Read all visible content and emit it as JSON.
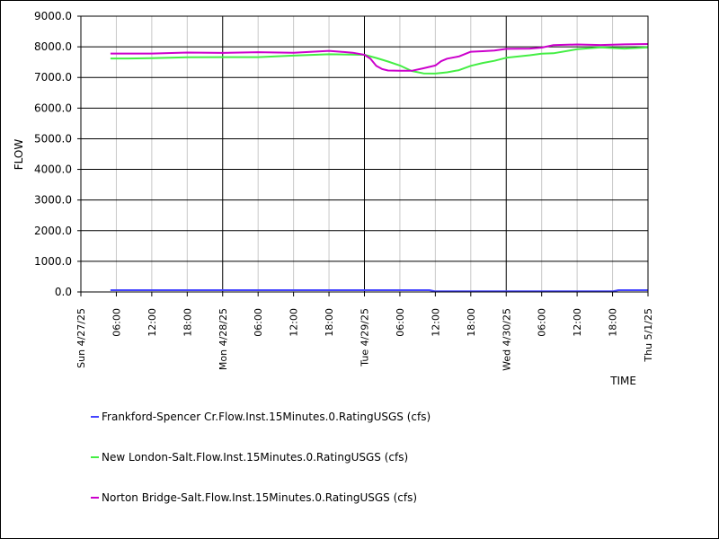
{
  "chart_data": {
    "type": "line",
    "title": "",
    "xlabel": "TIME",
    "ylabel": "FLOW",
    "ylim": [
      0,
      9000
    ],
    "yticks": [
      "0.0",
      "1000.0",
      "2000.0",
      "3000.0",
      "4000.0",
      "5000.0",
      "6000.0",
      "7000.0",
      "8000.0",
      "9000.0"
    ],
    "xlim": [
      0,
      96
    ],
    "xtick_positions": [
      0,
      6,
      12,
      18,
      24,
      30,
      36,
      42,
      48,
      54,
      60,
      66,
      72,
      78,
      84,
      90,
      96
    ],
    "xticks": [
      "Sun 4/27/25",
      "06:00",
      "12:00",
      "18:00",
      "Mon 4/28/25",
      "06:00",
      "12:00",
      "18:00",
      "Tue 4/29/25",
      "06:00",
      "12:00",
      "18:00",
      "Wed 4/30/25",
      "06:00",
      "12:00",
      "18:00",
      "Thu 5/1/25"
    ],
    "major_x": [
      0,
      24,
      48,
      72,
      96
    ],
    "grid": true,
    "legend_position": "bottom",
    "series": [
      {
        "name": "Frankford-Spencer Cr.Flow.Inst.15Minutes.0.RatingUSGS (cfs)",
        "color": "#4444ff",
        "x": [
          5,
          24,
          48,
          59,
          60,
          72,
          84,
          90,
          91,
          96
        ],
        "y": [
          60,
          60,
          60,
          60,
          20,
          20,
          20,
          20,
          60,
          60
        ]
      },
      {
        "name": "New London-Salt.Flow.Inst.15Minutes.0.RatingUSGS (cfs)",
        "color": "#44ee44",
        "x": [
          5,
          8,
          12,
          18,
          24,
          30,
          36,
          42,
          48,
          50,
          52,
          54,
          56,
          58,
          60,
          62,
          64,
          66,
          68,
          70,
          72,
          76,
          78,
          80,
          84,
          88,
          92,
          96
        ],
        "y": [
          7620,
          7600,
          7640,
          7660,
          7650,
          7680,
          7720,
          7750,
          7720,
          7650,
          7520,
          7380,
          7230,
          7140,
          7120,
          7150,
          7250,
          7380,
          7460,
          7560,
          7650,
          7720,
          7760,
          7800,
          7920,
          7970,
          7960,
          7980
        ]
      },
      {
        "name": "Norton Bridge-Salt.Flow.Inst.15Minutes.0.RatingUSGS (cfs)",
        "color": "#cc00cc",
        "x": [
          5,
          12,
          18,
          24,
          30,
          36,
          42,
          46,
          48,
          49,
          50,
          51,
          52,
          54,
          56,
          58,
          60,
          61,
          62,
          64,
          66,
          68,
          70,
          72,
          76,
          78,
          80,
          84,
          88,
          92,
          96
        ],
        "y": [
          7780,
          7780,
          7800,
          7820,
          7830,
          7800,
          7850,
          7820,
          7740,
          7600,
          7400,
          7280,
          7220,
          7200,
          7230,
          7300,
          7380,
          7550,
          7620,
          7680,
          7820,
          7870,
          7880,
          7920,
          7960,
          7980,
          8050,
          8060,
          8070,
          8080,
          8090
        ]
      }
    ]
  }
}
